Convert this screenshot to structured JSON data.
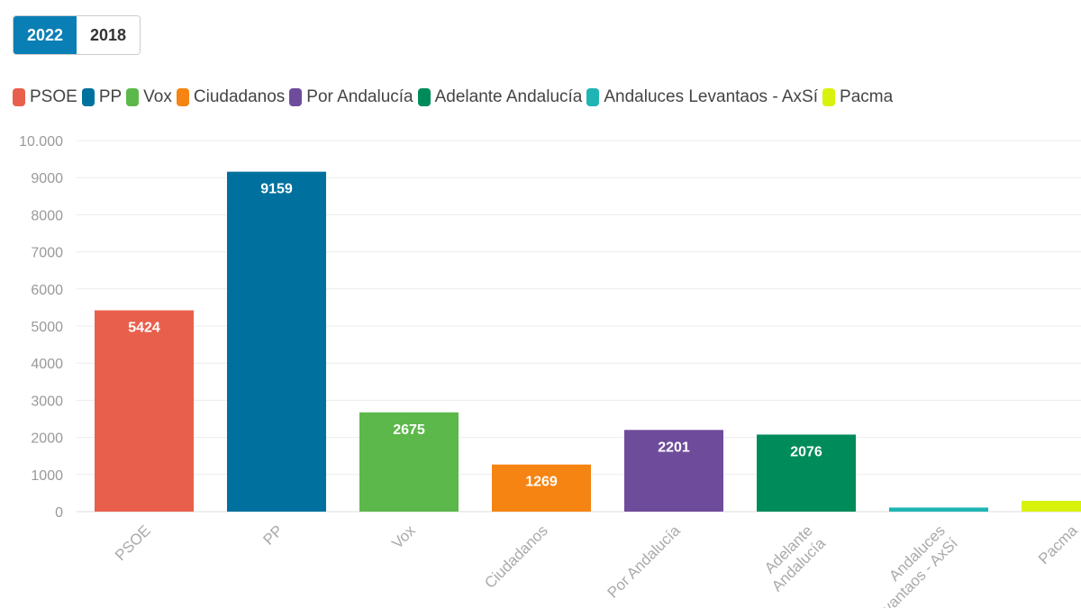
{
  "tabs": [
    {
      "label": "2022",
      "active": true
    },
    {
      "label": "2018",
      "active": false
    }
  ],
  "chart_data": {
    "type": "bar",
    "categories": [
      "PSOE",
      "PP",
      "Vox",
      "Ciudadanos",
      "Por Andalucía",
      "Adelante Andalucía",
      "Andaluces Levantaos - AxSí",
      "Pacma"
    ],
    "values": [
      5424,
      9159,
      2675,
      1269,
      2201,
      2076,
      110,
      290
    ],
    "data_labels": [
      "5424",
      "9159",
      "2675",
      "1269",
      "2201",
      "2076",
      "",
      ""
    ],
    "colors": [
      "#e8604c",
      "#00719e",
      "#5cb84a",
      "#f58412",
      "#6f4c9b",
      "#008c5a",
      "#1fb5b5",
      "#d9f20c"
    ],
    "ylim": [
      0,
      10000
    ],
    "yticks": [
      0,
      1000,
      2000,
      3000,
      4000,
      5000,
      6000,
      7000,
      8000,
      9000,
      10000
    ],
    "ytick_labels": [
      "0",
      "1000",
      "2000",
      "3000",
      "4000",
      "5000",
      "6000",
      "7000",
      "8000",
      "9000",
      "10.000"
    ],
    "grid": true,
    "legend": "top",
    "title": "",
    "xlabel": "",
    "ylabel": ""
  }
}
